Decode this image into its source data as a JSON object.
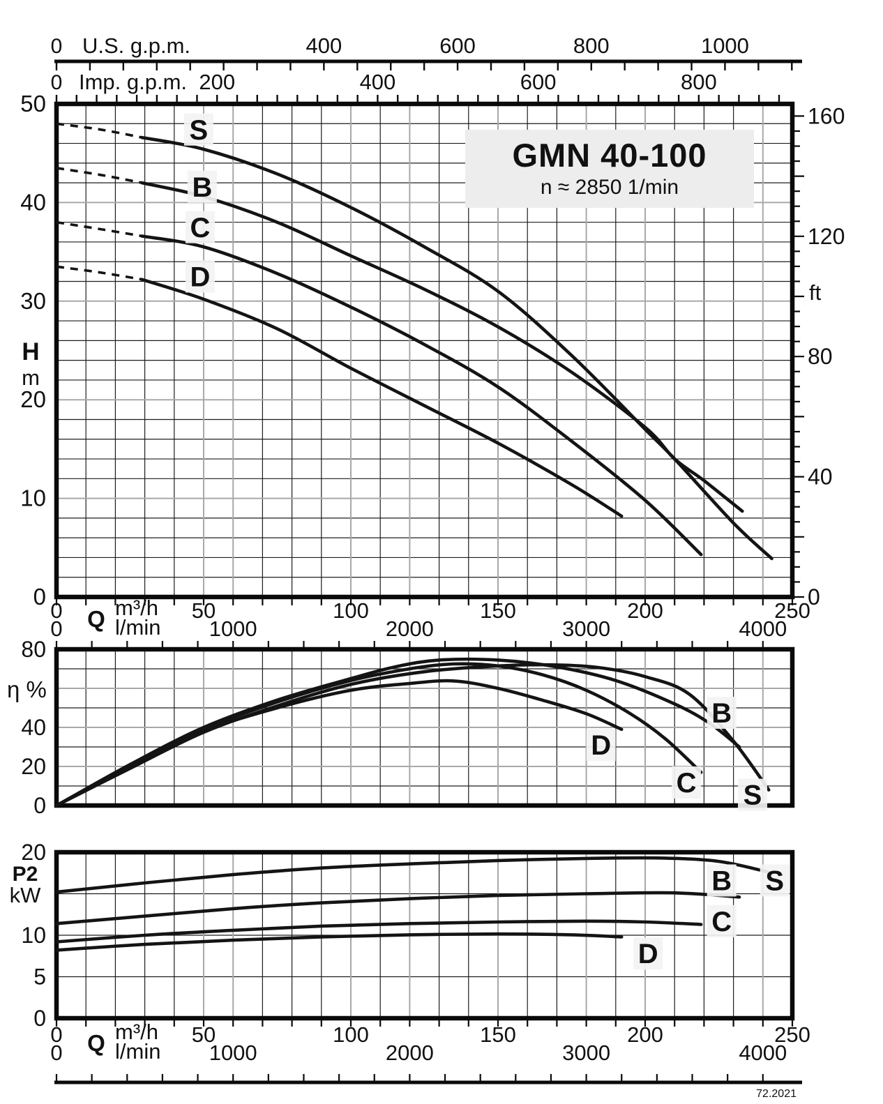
{
  "figure": {
    "title": "GMN 40-100",
    "subtitle": "n ≈ 2850 1/min",
    "footer": "72.2021",
    "curve_ids": [
      "S",
      "B",
      "C",
      "D"
    ]
  },
  "axes": {
    "flow": {
      "q_label": "Q",
      "m3h": {
        "label": "m³/h",
        "ticks": [
          0,
          50,
          100,
          150,
          200,
          250
        ],
        "minor_step": 10,
        "max": 250
      },
      "lmin": {
        "label": "l/min",
        "ticks": [
          0,
          1000,
          2000,
          3000,
          4000
        ],
        "tick_step": 200,
        "lmin_per_m3h": 16.6667
      },
      "us_gpm": {
        "label": "U.S. g.p.m.",
        "ticks": [
          0,
          400,
          600,
          800,
          1000
        ],
        "tick_step": 50,
        "tick_max": 1100,
        "m3h_per_unit": 0.22712
      },
      "imp_gpm": {
        "label": "Imp. g.p.m.",
        "ticks": [
          0,
          200,
          400,
          600,
          800
        ],
        "tick_step": 25,
        "tick_max": 900,
        "m3h_per_unit": 0.27277
      }
    },
    "head": {
      "label": "H",
      "unit": "m",
      "ticks": [
        0,
        10,
        20,
        30,
        40,
        50
      ],
      "minor_step": 2,
      "max": 50
    },
    "head_ft": {
      "label": "ft",
      "ticks": [
        0,
        40,
        80,
        120,
        160
      ],
      "minor_step": 5,
      "long_step": 20,
      "ft_per_m": 3.2808
    },
    "eff": {
      "label": "η %",
      "ticks": [
        0,
        20,
        40,
        80
      ],
      "minor_step": 10,
      "max": 80
    },
    "power": {
      "label_line1": "P2",
      "label_line2": "kW",
      "ticks": [
        0,
        5,
        10,
        20
      ],
      "minor_step": 5,
      "max": 20
    }
  },
  "chart_data": [
    {
      "type": "line",
      "id": "head",
      "title": "Head vs flow (GMN 40-100 impeller trims S, B, C, D)",
      "xlabel": "Q (m³/h)",
      "ylabel": "H (m)",
      "xlim": [
        0,
        250
      ],
      "ylim": [
        0,
        50
      ],
      "grid": "on",
      "dashed_until_x": 29,
      "series": [
        {
          "name": "S",
          "points": [
            [
              0,
              48
            ],
            [
              15,
              47.4
            ],
            [
              29,
              46.6
            ],
            [
              50,
              45.4
            ],
            [
              75,
              42.9
            ],
            [
              100,
              39.5
            ],
            [
              125,
              35.5
            ],
            [
              150,
              31
            ],
            [
              175,
              24.5
            ],
            [
              200,
              17
            ],
            [
              210,
              14
            ],
            [
              230,
              7.5
            ],
            [
              243,
              3.9
            ]
          ]
        },
        {
          "name": "B",
          "points": [
            [
              0,
              43.5
            ],
            [
              15,
              42.8
            ],
            [
              29,
              42
            ],
            [
              50,
              40.6
            ],
            [
              75,
              38
            ],
            [
              100,
              34.6
            ],
            [
              125,
              31.2
            ],
            [
              150,
              27.4
            ],
            [
              175,
              22.8
            ],
            [
              200,
              17.2
            ],
            [
              210,
              14
            ],
            [
              220,
              11.8
            ],
            [
              233,
              8.7
            ]
          ]
        },
        {
          "name": "C",
          "points": [
            [
              0,
              38
            ],
            [
              15,
              37.3
            ],
            [
              29,
              36.6
            ],
            [
              50,
              35.5
            ],
            [
              75,
              32.8
            ],
            [
              100,
              29.4
            ],
            [
              125,
              25.6
            ],
            [
              150,
              21.3
            ],
            [
              175,
              15.8
            ],
            [
              200,
              9.8
            ],
            [
              219,
              4.3
            ]
          ]
        },
        {
          "name": "D",
          "points": [
            [
              0,
              33.5
            ],
            [
              15,
              32.9
            ],
            [
              29,
              32.2
            ],
            [
              50,
              30.2
            ],
            [
              75,
              27.2
            ],
            [
              100,
              23.2
            ],
            [
              125,
              19.4
            ],
            [
              150,
              15.6
            ],
            [
              175,
              11.4
            ],
            [
              192,
              8.2
            ]
          ]
        }
      ],
      "labels": [
        {
          "text": "S",
          "x": 48.3,
          "y": 47.4
        },
        {
          "text": "B",
          "x": 49.5,
          "y": 41.6
        },
        {
          "text": "C",
          "x": 48.8,
          "y": 37.5
        },
        {
          "text": "D",
          "x": 48.8,
          "y": 32.5
        }
      ]
    },
    {
      "type": "line",
      "id": "efficiency",
      "title": "Efficiency vs flow",
      "xlabel": "Q (m³/h)",
      "ylabel": "η (%)",
      "xlim": [
        0,
        250
      ],
      "ylim": [
        0,
        80
      ],
      "grid": "on",
      "series": [
        {
          "name": "S",
          "points": [
            [
              0,
              0
            ],
            [
              25,
              19
            ],
            [
              50,
              37.5
            ],
            [
              75,
              51
            ],
            [
              100,
              62
            ],
            [
              125,
              68.5
            ],
            [
              150,
              71.5
            ],
            [
              170,
              72
            ],
            [
              185,
              70.5
            ],
            [
              200,
              66
            ],
            [
              215,
              57
            ],
            [
              230,
              33
            ],
            [
              242,
              8
            ]
          ]
        },
        {
          "name": "B",
          "points": [
            [
              0,
              0
            ],
            [
              25,
              21
            ],
            [
              50,
              40
            ],
            [
              75,
              54
            ],
            [
              100,
              65
            ],
            [
              115,
              71
            ],
            [
              130,
              74.5
            ],
            [
              150,
              74.5
            ],
            [
              170,
              71
            ],
            [
              190,
              64
            ],
            [
              210,
              52
            ],
            [
              222,
              42
            ],
            [
              232,
              30
            ]
          ]
        },
        {
          "name": "C",
          "points": [
            [
              0,
              0
            ],
            [
              25,
              20
            ],
            [
              50,
              39
            ],
            [
              75,
              53
            ],
            [
              100,
              64
            ],
            [
              120,
              70
            ],
            [
              135,
              72.5
            ],
            [
              150,
              71.5
            ],
            [
              165,
              67
            ],
            [
              180,
              59
            ],
            [
              195,
              47
            ],
            [
              207,
              34
            ],
            [
              219,
              17
            ]
          ]
        },
        {
          "name": "D",
          "points": [
            [
              0,
              0
            ],
            [
              25,
              20
            ],
            [
              50,
              38
            ],
            [
              75,
              50
            ],
            [
              100,
              59
            ],
            [
              120,
              62.5
            ],
            [
              135,
              63.8
            ],
            [
              150,
              60
            ],
            [
              165,
              54
            ],
            [
              180,
              47
            ],
            [
              192,
              39
            ]
          ]
        }
      ],
      "labels": [
        {
          "text": "B",
          "x": 226,
          "y": 47.5
        },
        {
          "text": "D",
          "x": 185,
          "y": 31
        },
        {
          "text": "C",
          "x": 214,
          "y": 11.8
        },
        {
          "text": "S",
          "x": 236.5,
          "y": 5.5
        }
      ]
    },
    {
      "type": "line",
      "id": "power",
      "title": "Shaft power vs flow",
      "xlabel": "Q (m³/h)",
      "ylabel": "P2 (kW)",
      "xlim": [
        0,
        250
      ],
      "ylim": [
        0,
        20
      ],
      "grid": "on",
      "series": [
        {
          "name": "S",
          "points": [
            [
              0,
              15.2
            ],
            [
              30,
              16.3
            ],
            [
              60,
              17.3
            ],
            [
              90,
              18.1
            ],
            [
              120,
              18.6
            ],
            [
              150,
              19
            ],
            [
              180,
              19.25
            ],
            [
              205,
              19.3
            ],
            [
              225,
              18.9
            ],
            [
              242,
              17.6
            ]
          ]
        },
        {
          "name": "B",
          "points": [
            [
              0,
              11.4
            ],
            [
              30,
              12.3
            ],
            [
              60,
              13.2
            ],
            [
              90,
              13.9
            ],
            [
              120,
              14.4
            ],
            [
              150,
              14.8
            ],
            [
              180,
              15
            ],
            [
              210,
              15.1
            ],
            [
              232,
              14.6
            ]
          ]
        },
        {
          "name": "C",
          "points": [
            [
              0,
              9.2
            ],
            [
              30,
              10
            ],
            [
              60,
              10.6
            ],
            [
              90,
              11.1
            ],
            [
              120,
              11.4
            ],
            [
              150,
              11.6
            ],
            [
              180,
              11.7
            ],
            [
              200,
              11.6
            ],
            [
              219,
              11.3
            ]
          ]
        },
        {
          "name": "D",
          "points": [
            [
              0,
              8.2
            ],
            [
              30,
              8.9
            ],
            [
              60,
              9.4
            ],
            [
              90,
              9.8
            ],
            [
              120,
              10.05
            ],
            [
              150,
              10.15
            ],
            [
              175,
              10.05
            ],
            [
              192,
              9.8
            ]
          ]
        }
      ],
      "labels": [
        {
          "text": "B",
          "x": 226,
          "y": 16.6
        },
        {
          "text": "S",
          "x": 244,
          "y": 16.6
        },
        {
          "text": "C",
          "x": 226,
          "y": 11.7
        },
        {
          "text": "D",
          "x": 201,
          "y": 7.8
        }
      ]
    }
  ],
  "colors": {
    "curve": "#141414",
    "grid_minor": "#1c1c1c",
    "grid_major": "#a8a8a8",
    "frame": "#0a0a0a",
    "title_box_bg": "#ededed",
    "label_halo": "#f3f3f3"
  }
}
